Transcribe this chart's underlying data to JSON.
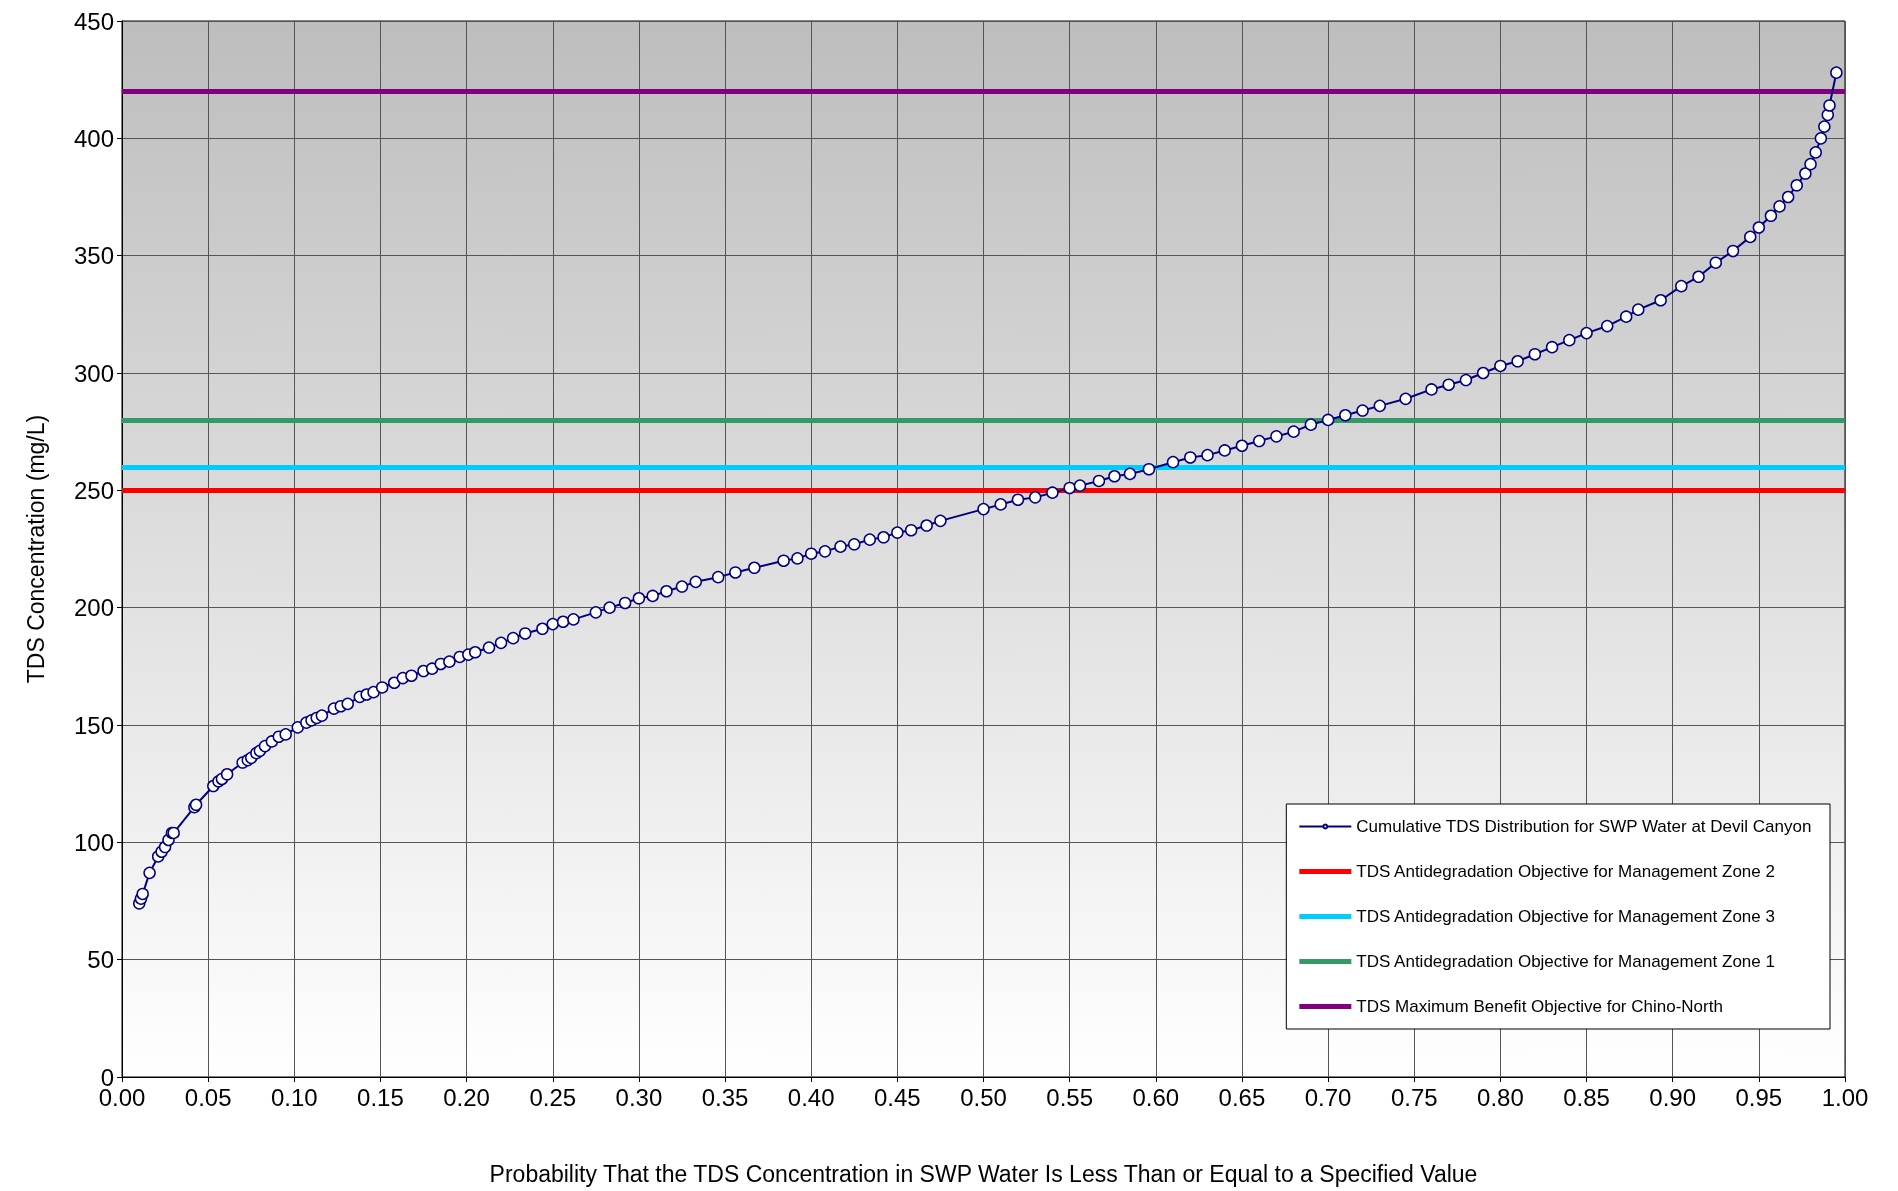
{
  "chart_data": {
    "type": "line",
    "xlabel": "Probability That the TDS Concentration in SWP Water Is Less Than or Equal to a Specified Value",
    "ylabel": "TDS Concentration (mg/L)",
    "xlim": [
      0,
      1
    ],
    "ylim": [
      0,
      450
    ],
    "xticks": [
      {
        "value": 0,
        "label": "0.00"
      },
      {
        "value": 0.05,
        "label": "0.05"
      },
      {
        "value": 0.1,
        "label": "0.10"
      },
      {
        "value": 0.15,
        "label": "0.15"
      },
      {
        "value": 0.2,
        "label": "0.20"
      },
      {
        "value": 0.25,
        "label": "0.25"
      },
      {
        "value": 0.3,
        "label": "0.30"
      },
      {
        "value": 0.35,
        "label": "0.35"
      },
      {
        "value": 0.4,
        "label": "0.40"
      },
      {
        "value": 0.45,
        "label": "0.45"
      },
      {
        "value": 0.5,
        "label": "0.50"
      },
      {
        "value": 0.55,
        "label": "0.55"
      },
      {
        "value": 0.6,
        "label": "0.60"
      },
      {
        "value": 0.65,
        "label": "0.65"
      },
      {
        "value": 0.7,
        "label": "0.70"
      },
      {
        "value": 0.75,
        "label": "0.75"
      },
      {
        "value": 0.8,
        "label": "0.80"
      },
      {
        "value": 0.85,
        "label": "0.85"
      },
      {
        "value": 0.9,
        "label": "0.90"
      },
      {
        "value": 0.95,
        "label": "0.95"
      },
      {
        "value": 1,
        "label": "1.00"
      }
    ],
    "yticks": [
      0,
      50,
      100,
      150,
      200,
      250,
      300,
      350,
      400,
      450
    ],
    "grid": true,
    "legend": "bottom right",
    "marker": "circle",
    "line_style": "solid",
    "series": [
      {
        "name": "Cumulative TDS Distribution for SWP Water at Devil Canyon",
        "color": "#000080",
        "x": [
          0.01,
          0.011,
          0.012,
          0.016,
          0.021,
          0.023,
          0.025,
          0.027,
          0.029,
          0.03,
          0.042,
          0.043,
          0.053,
          0.056,
          0.058,
          0.061,
          0.07,
          0.073,
          0.075,
          0.078,
          0.08,
          0.083,
          0.087,
          0.091,
          0.095,
          0.102,
          0.107,
          0.11,
          0.113,
          0.116,
          0.123,
          0.127,
          0.131,
          0.138,
          0.142,
          0.146,
          0.151,
          0.158,
          0.163,
          0.168,
          0.175,
          0.18,
          0.185,
          0.19,
          0.196,
          0.201,
          0.205,
          0.213,
          0.22,
          0.227,
          0.234,
          0.244,
          0.25,
          0.256,
          0.262,
          0.275,
          0.283,
          0.292,
          0.3,
          0.308,
          0.316,
          0.325,
          0.333,
          0.346,
          0.356,
          0.367,
          0.384,
          0.392,
          0.4,
          0.408,
          0.417,
          0.425,
          0.434,
          0.442,
          0.45,
          0.458,
          0.467,
          0.475,
          0.5,
          0.51,
          0.52,
          0.53,
          0.54,
          0.55,
          0.556,
          0.567,
          0.576,
          0.585,
          0.596,
          0.61,
          0.62,
          0.63,
          0.64,
          0.65,
          0.66,
          0.67,
          0.68,
          0.69,
          0.7,
          0.71,
          0.72,
          0.73,
          0.745,
          0.76,
          0.77,
          0.78,
          0.79,
          0.8,
          0.81,
          0.82,
          0.83,
          0.84,
          0.85,
          0.862,
          0.873,
          0.88,
          0.893,
          0.905,
          0.915,
          0.925,
          0.935,
          0.945,
          0.95,
          0.957,
          0.962,
          0.967,
          0.972,
          0.977,
          0.98,
          0.983,
          0.986,
          0.988,
          0.99,
          0.991,
          0.995
        ],
        "values": [
          74,
          76,
          78,
          87,
          94,
          96,
          98,
          101,
          104,
          104,
          115,
          116,
          124,
          126,
          127,
          129,
          134,
          135,
          136,
          138,
          139,
          141,
          143,
          145,
          146,
          149,
          151,
          152,
          153,
          154,
          157,
          158,
          159,
          162,
          163,
          164,
          166,
          168,
          170,
          171,
          173,
          174,
          176,
          177,
          179,
          180,
          181,
          183,
          185,
          187,
          189,
          191,
          193,
          194,
          195,
          198,
          200,
          202,
          204,
          205,
          207,
          209,
          211,
          213,
          215,
          217,
          220,
          221,
          223,
          224,
          226,
          227,
          229,
          230,
          232,
          233,
          235,
          237,
          242,
          244,
          246,
          247,
          249,
          251,
          252,
          254,
          256,
          257,
          259,
          262,
          264,
          265,
          267,
          269,
          271,
          273,
          275,
          278,
          280,
          282,
          284,
          286,
          289,
          293,
          295,
          297,
          300,
          303,
          305,
          308,
          311,
          314,
          317,
          320,
          324,
          327,
          331,
          337,
          341,
          347,
          352,
          358,
          362,
          367,
          371,
          375,
          380,
          385,
          389,
          394,
          400,
          405,
          410,
          414,
          428
        ]
      }
    ],
    "ref_lines": [
      {
        "axis": "y",
        "value": 250,
        "label": "TDS Antidegradation Objective for Management Zone 2",
        "color": "#ff0000"
      },
      {
        "axis": "y",
        "value": 260,
        "label": "TDS Antidegradation Objective for Management Zone 3",
        "color": "#00ccff"
      },
      {
        "axis": "y",
        "value": 280,
        "label": "TDS Antidegradation Objective for Management Zone 1",
        "color": "#339966"
      },
      {
        "axis": "y",
        "value": 420,
        "label": "TDS Maximum Benefit Objective for Chino-North",
        "color": "#800080"
      }
    ]
  }
}
